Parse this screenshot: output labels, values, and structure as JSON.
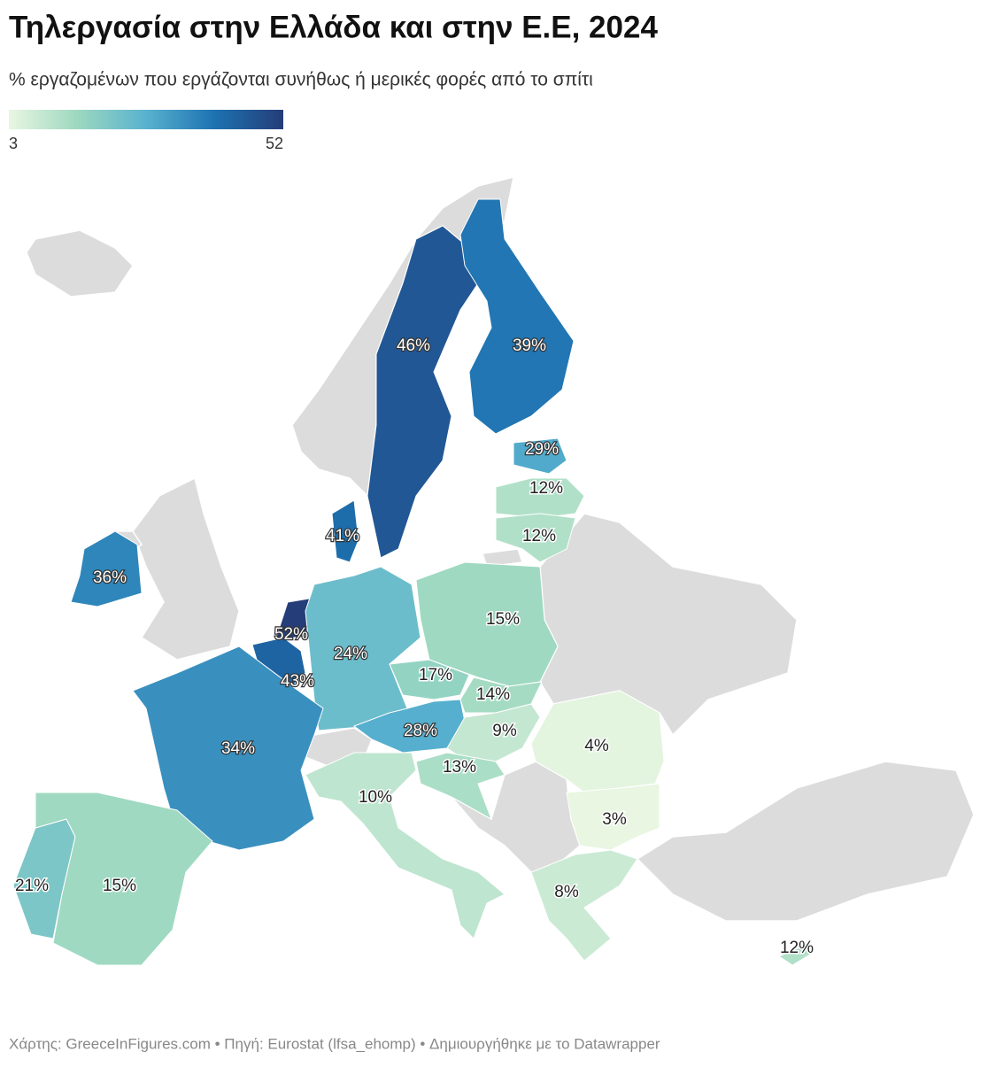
{
  "chart_data": {
    "type": "choropleth",
    "title": "Τηλεργασία στην Ελλάδα και στην Ε.Ε, 2024",
    "subtitle": "% εργαζομένων που εργάζονται συνήθως ή μερικές φορές από το σπίτι",
    "legend": {
      "min": 3,
      "max": 52,
      "colors": [
        "#e9f6e2",
        "#9dd8c0",
        "#58b2cf",
        "#1d72b1",
        "#253d78"
      ]
    },
    "values": [
      46,
      39,
      29,
      12,
      12,
      41,
      36,
      52,
      43,
      24,
      15,
      17,
      14,
      28,
      9,
      34,
      13,
      4,
      10,
      3,
      21,
      15,
      8,
      12
    ],
    "value_labels": [
      "46%",
      "39%",
      "29%",
      "12%",
      "12%",
      "41%",
      "36%",
      "52%",
      "43%",
      "24%",
      "15%",
      "17%",
      "14%",
      "28%",
      "9%",
      "34%",
      "13%",
      "4%",
      "10%",
      "3%",
      "21%",
      "15%",
      "8%",
      "12%"
    ],
    "source": "Χάρτης: GreeceInFigures.com • Πηγή: Eurostat (lfsa_ehomp) • Δημιουργήθηκε με το Datawrapper"
  }
}
